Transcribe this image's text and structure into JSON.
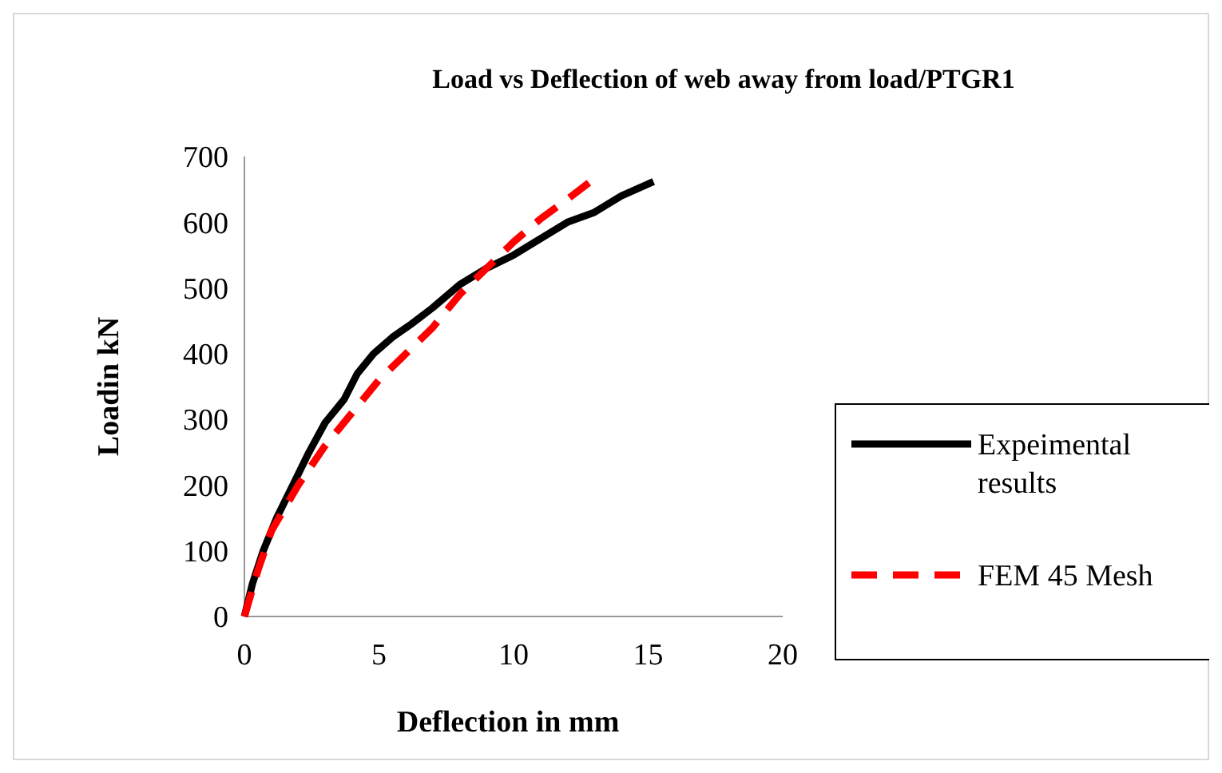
{
  "chart_data": {
    "type": "line",
    "title": "Load vs Deflection of web away from load/PTGR1",
    "xlabel": "Deflection in mm",
    "ylabel": "Loadin kN",
    "xlim": [
      0,
      20
    ],
    "xticks": [
      0,
      5,
      10,
      15,
      20
    ],
    "ylim": [
      0,
      700
    ],
    "yticks": [
      0,
      100,
      200,
      300,
      400,
      500,
      600,
      700
    ],
    "grid": false,
    "legend": "right",
    "series": [
      {
        "name": "Expeimental results",
        "color": "#000000",
        "line_style": "solid",
        "x": [
          0,
          0.3,
          0.7,
          1.2,
          1.8,
          2.4,
          3.0,
          3.7,
          4.2,
          4.8,
          5.5,
          6.2,
          7,
          8,
          9,
          10,
          11,
          12,
          13,
          14,
          15.2
        ],
        "values": [
          0,
          50,
          100,
          150,
          200,
          250,
          295,
          330,
          370,
          400,
          425,
          445,
          470,
          505,
          530,
          550,
          575,
          600,
          615,
          640,
          662
        ]
      },
      {
        "name": "FEM 45 Mesh",
        "color": "#ff0000",
        "line_style": "dashed",
        "x": [
          0,
          0.5,
          1,
          2,
          3,
          4,
          5,
          6,
          7,
          8,
          9,
          10,
          11,
          12,
          12.8
        ],
        "values": [
          0,
          70,
          130,
          200,
          260,
          310,
          360,
          400,
          440,
          490,
          530,
          570,
          605,
          635,
          660
        ]
      }
    ]
  }
}
